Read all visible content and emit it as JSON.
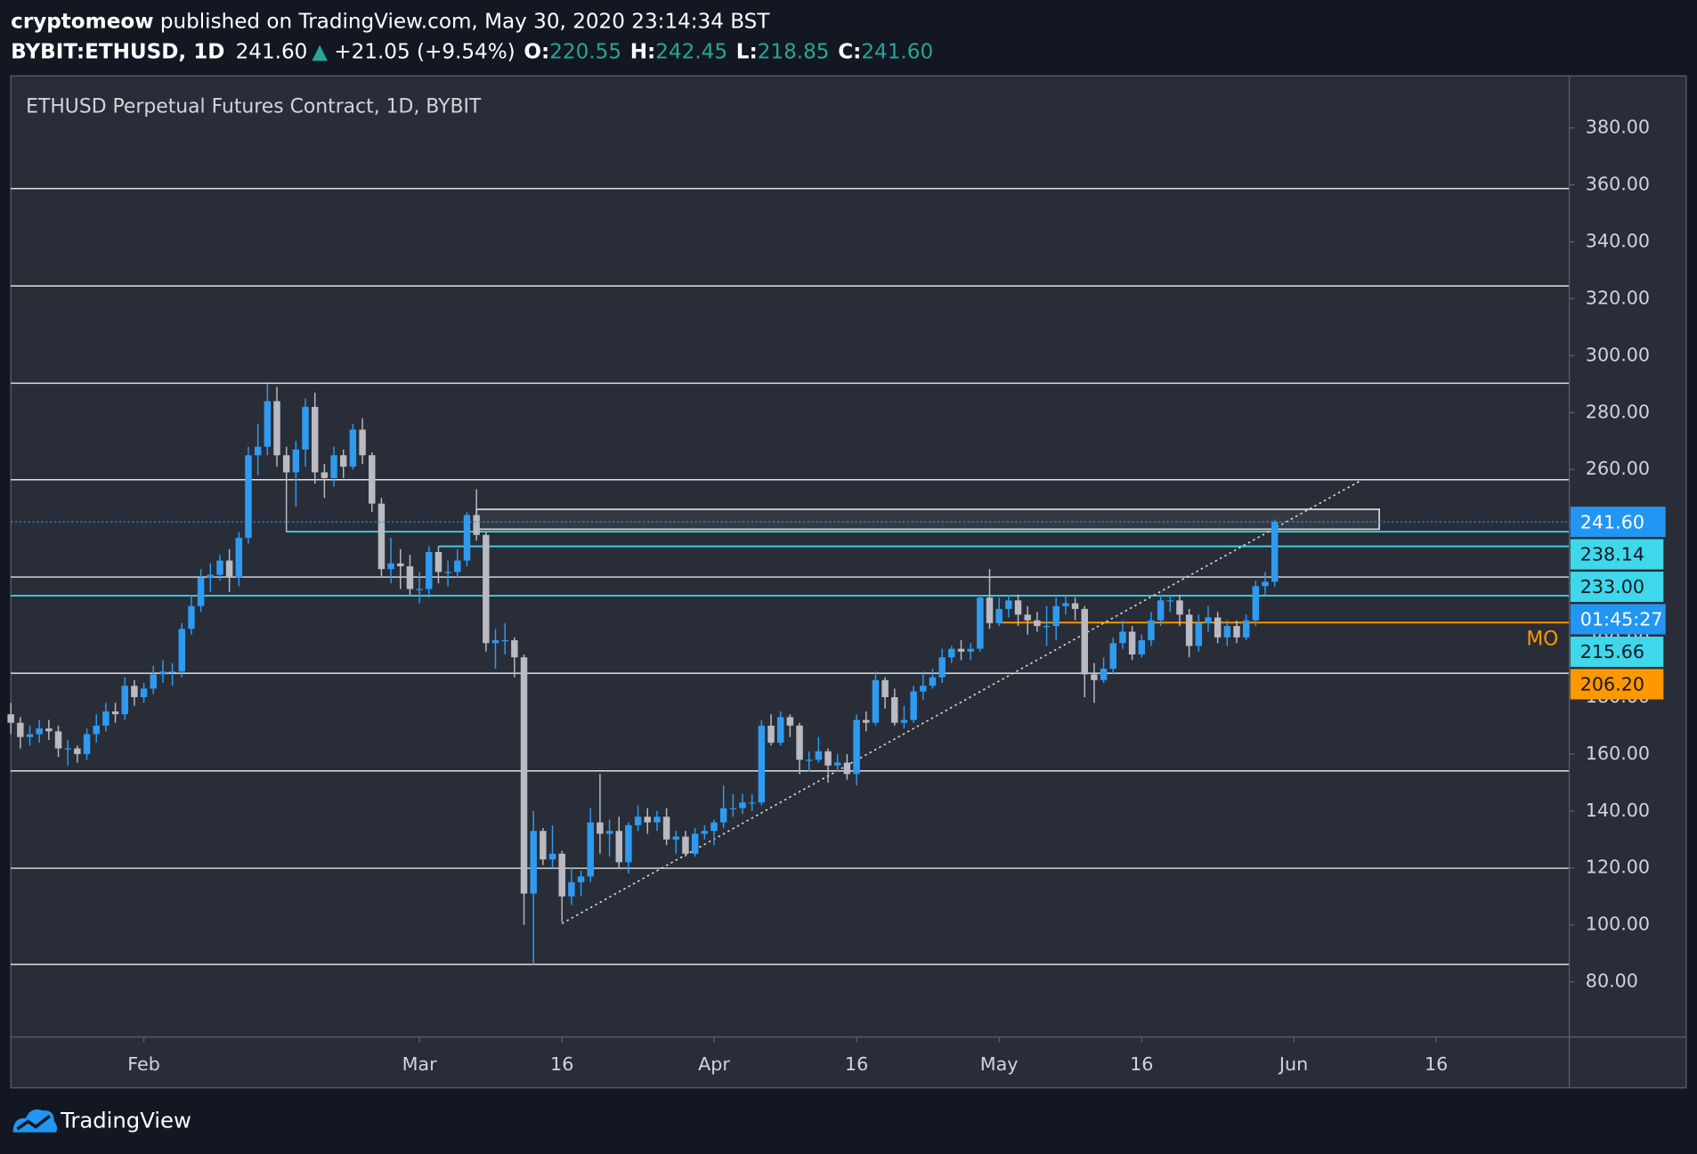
{
  "header": {
    "author": "cryptomeow",
    "published": "published on TradingView.com, May 30, 2020 23:14:34 BST",
    "symbol": "BYBIT:ETHUSD, 1D",
    "price": "241.60",
    "arrow": "▲",
    "change": "+21.05 (+9.54%)",
    "o_label": "O:",
    "o": "220.55",
    "h_label": "H:",
    "h": "242.45",
    "l_label": "L:",
    "l": "218.85",
    "c_label": "C:",
    "c": "241.60"
  },
  "footer": {
    "brand": "TradingView"
  },
  "chart_data": {
    "type": "candlestick",
    "title": "ETHUSD Perpetual Futures Contract, 1D, BYBIT",
    "up_color": "#2e9bf0",
    "down_color": "#b9bac2",
    "x": [
      "2020-01-18",
      "2020-01-19",
      "2020-01-20",
      "2020-01-21",
      "2020-01-22",
      "2020-01-23",
      "2020-01-24",
      "2020-01-25",
      "2020-01-26",
      "2020-01-27",
      "2020-01-28",
      "2020-01-29",
      "2020-01-30",
      "2020-01-31",
      "2020-02-01",
      "2020-02-02",
      "2020-02-03",
      "2020-02-04",
      "2020-02-05",
      "2020-02-06",
      "2020-02-07",
      "2020-02-08",
      "2020-02-09",
      "2020-02-10",
      "2020-02-11",
      "2020-02-12",
      "2020-02-13",
      "2020-02-14",
      "2020-02-15",
      "2020-02-16",
      "2020-02-17",
      "2020-02-18",
      "2020-02-19",
      "2020-02-20",
      "2020-02-21",
      "2020-02-22",
      "2020-02-23",
      "2020-02-24",
      "2020-02-25",
      "2020-02-26",
      "2020-02-27",
      "2020-02-28",
      "2020-02-29",
      "2020-03-01",
      "2020-03-02",
      "2020-03-03",
      "2020-03-04",
      "2020-03-05",
      "2020-03-06",
      "2020-03-07",
      "2020-03-08",
      "2020-03-09",
      "2020-03-10",
      "2020-03-11",
      "2020-03-12",
      "2020-03-13",
      "2020-03-14",
      "2020-03-15",
      "2020-03-16",
      "2020-03-17",
      "2020-03-18",
      "2020-03-19",
      "2020-03-20",
      "2020-03-21",
      "2020-03-22",
      "2020-03-23",
      "2020-03-24",
      "2020-03-25",
      "2020-03-26",
      "2020-03-27",
      "2020-03-28",
      "2020-03-29",
      "2020-03-30",
      "2020-03-31",
      "2020-04-01",
      "2020-04-02",
      "2020-04-03",
      "2020-04-04",
      "2020-04-05",
      "2020-04-06",
      "2020-04-07",
      "2020-04-08",
      "2020-04-09",
      "2020-04-10",
      "2020-04-11",
      "2020-04-12",
      "2020-04-13",
      "2020-04-14",
      "2020-04-15",
      "2020-04-16",
      "2020-04-17",
      "2020-04-18",
      "2020-04-19",
      "2020-04-20",
      "2020-04-21",
      "2020-04-22",
      "2020-04-23",
      "2020-04-24",
      "2020-04-25",
      "2020-04-26",
      "2020-04-27",
      "2020-04-28",
      "2020-04-29",
      "2020-04-30",
      "2020-05-01",
      "2020-05-02",
      "2020-05-03",
      "2020-05-04",
      "2020-05-05",
      "2020-05-06",
      "2020-05-07",
      "2020-05-08",
      "2020-05-09",
      "2020-05-10",
      "2020-05-11",
      "2020-05-12",
      "2020-05-13",
      "2020-05-14",
      "2020-05-15",
      "2020-05-16",
      "2020-05-17",
      "2020-05-18",
      "2020-05-19",
      "2020-05-20",
      "2020-05-21",
      "2020-05-22",
      "2020-05-23",
      "2020-05-24",
      "2020-05-25",
      "2020-05-26",
      "2020-05-27",
      "2020-05-28",
      "2020-05-29",
      "2020-05-30"
    ],
    "open": [
      174,
      171,
      166,
      167,
      169,
      168,
      162,
      162,
      160,
      167,
      170,
      175,
      174,
      184,
      180,
      183,
      188,
      189,
      189,
      204,
      212,
      222,
      223,
      228,
      222,
      236,
      265,
      268,
      284,
      265,
      259,
      267,
      282,
      259,
      257,
      265,
      261,
      274,
      265,
      248,
      225,
      227,
      226,
      218,
      218,
      231,
      224,
      224,
      228,
      244,
      237,
      199,
      200,
      200,
      194,
      111,
      133,
      123,
      125,
      110,
      115,
      117,
      136,
      132,
      133,
      122,
      135,
      138,
      136,
      138,
      130,
      131,
      125,
      132,
      133,
      136,
      141,
      141,
      143,
      143,
      170,
      164,
      173,
      170,
      158,
      158,
      161,
      156,
      157,
      153,
      172,
      171,
      186,
      180,
      171,
      172,
      182,
      184,
      187,
      194,
      197,
      196,
      197,
      215,
      206,
      211,
      214,
      209,
      207,
      205,
      205,
      212,
      213,
      211,
      188,
      186,
      190,
      199,
      203,
      195,
      200,
      207,
      214,
      214,
      209,
      198,
      206,
      208,
      201,
      205,
      201,
      207,
      219,
      220.55
    ],
    "high": [
      178,
      173,
      170,
      172,
      172,
      170,
      165,
      163,
      169,
      174,
      178,
      178,
      187,
      186,
      185,
      191,
      193,
      192,
      206,
      216,
      225,
      227,
      230,
      232,
      238,
      268,
      276,
      290,
      289,
      268,
      270,
      285,
      287,
      262,
      268,
      267,
      276,
      278,
      266,
      250,
      236,
      232,
      230,
      224,
      233,
      233,
      228,
      232,
      245,
      253,
      238,
      204,
      206,
      201,
      195,
      140,
      134,
      135,
      126,
      120,
      119,
      141,
      153,
      137,
      138,
      136,
      142,
      141,
      140,
      141,
      133,
      133,
      134,
      135,
      137,
      149,
      146,
      146,
      146,
      172,
      174,
      175,
      174,
      171,
      161,
      166,
      162,
      160,
      160,
      174,
      175,
      189,
      187,
      183,
      177,
      184,
      189,
      190,
      197,
      198,
      200,
      199,
      216,
      225,
      215,
      216,
      216,
      212,
      210,
      212,
      215,
      216,
      215,
      212,
      192,
      194,
      201,
      207,
      205,
      202,
      210,
      216,
      216,
      216,
      211,
      209,
      212,
      210,
      207,
      207,
      209,
      221,
      224,
      242.45
    ],
    "low": [
      167,
      162,
      163,
      164,
      165,
      159,
      156,
      157,
      158,
      164,
      168,
      171,
      172,
      177,
      178,
      181,
      185,
      184,
      187,
      202,
      210,
      217,
      221,
      217,
      219,
      234,
      258,
      265,
      261,
      238,
      247,
      261,
      255,
      250,
      254,
      257,
      260,
      262,
      245,
      222,
      220,
      218,
      216,
      213,
      215,
      220,
      219,
      222,
      226,
      235,
      196,
      190,
      195,
      187,
      100,
      86,
      121,
      120,
      101,
      107,
      110,
      115,
      125,
      124,
      120,
      118,
      133,
      132,
      133,
      128,
      125,
      124,
      124,
      130,
      128,
      134,
      138,
      139,
      140,
      142,
      163,
      163,
      166,
      153,
      154,
      157,
      150,
      154,
      151,
      149,
      168,
      170,
      176,
      170,
      169,
      171,
      179,
      183,
      185,
      192,
      193,
      193,
      196,
      204,
      205,
      208,
      205,
      202,
      203,
      198,
      200,
      209,
      207,
      180,
      178,
      185,
      188,
      197,
      193,
      194,
      198,
      205,
      210,
      205,
      194,
      196,
      203,
      199,
      198,
      199,
      200,
      205,
      216,
      218.85
    ],
    "close": [
      171,
      166,
      167,
      169,
      168,
      162,
      162,
      160,
      167,
      170,
      175,
      174,
      184,
      180,
      183,
      188,
      189,
      189,
      204,
      212,
      222,
      223,
      228,
      222,
      236,
      265,
      268,
      284,
      265,
      259,
      267,
      282,
      259,
      257,
      265,
      261,
      274,
      265,
      248,
      225,
      227,
      226,
      218,
      218,
      231,
      224,
      224,
      228,
      244,
      237,
      199,
      200,
      200,
      194,
      111,
      133,
      123,
      125,
      110,
      115,
      117,
      136,
      132,
      133,
      122,
      135,
      138,
      136,
      138,
      130,
      131,
      125,
      132,
      133,
      136,
      141,
      141,
      143,
      143,
      170,
      164,
      173,
      170,
      158,
      158,
      161,
      156,
      157,
      153,
      172,
      171,
      186,
      180,
      171,
      172,
      182,
      184,
      187,
      194,
      197,
      196,
      197,
      215,
      206,
      211,
      214,
      209,
      207,
      205,
      205,
      212,
      213,
      211,
      188,
      186,
      190,
      199,
      203,
      195,
      200,
      207,
      214,
      214,
      209,
      198,
      206,
      208,
      201,
      205,
      201,
      207,
      219,
      220.55,
      241.6
    ],
    "xlim": [
      "2020-01-18",
      "2020-06-30"
    ],
    "xticks": [
      {
        "value": "2020-02-01",
        "label": "Feb"
      },
      {
        "value": "2020-03-01",
        "label": "Mar"
      },
      {
        "value": "2020-03-16",
        "label": "16"
      },
      {
        "value": "2020-04-01",
        "label": "Apr"
      },
      {
        "value": "2020-04-16",
        "label": "16"
      },
      {
        "value": "2020-05-01",
        "label": "May"
      },
      {
        "value": "2020-05-16",
        "label": "16"
      },
      {
        "value": "2020-06-01",
        "label": "Jun"
      },
      {
        "value": "2020-06-16",
        "label": "16"
      }
    ],
    "ylim": [
      60.6,
      398.3
    ],
    "yticks": [
      {
        "value": 80,
        "label": "80.00"
      },
      {
        "value": 100,
        "label": "100.00"
      },
      {
        "value": 120,
        "label": "120.00"
      },
      {
        "value": 140,
        "label": "140.00"
      },
      {
        "value": 160,
        "label": "160.00"
      },
      {
        "value": 180,
        "label": "180.00"
      },
      {
        "value": 200,
        "label": "200.00"
      },
      {
        "value": 220,
        "label": "220.00"
      },
      {
        "value": 240,
        "label": "240.00"
      },
      {
        "value": 260,
        "label": "260.00"
      },
      {
        "value": 280,
        "label": "280.00"
      },
      {
        "value": 300,
        "label": "300.00"
      },
      {
        "value": 320,
        "label": "320.00"
      },
      {
        "value": 340,
        "label": "340.00"
      },
      {
        "value": 360,
        "label": "360.00"
      },
      {
        "value": 380,
        "label": "380.00"
      }
    ],
    "horizontal_lines": [
      358.7,
      324.5,
      290.3,
      256.4,
      222.2,
      188.4,
      154.1,
      119.9,
      86.1
    ],
    "rectangle": {
      "x": [
        "2020-03-07",
        "2020-06-10"
      ],
      "y": [
        239,
        246
      ]
    },
    "trend_line": {
      "x": [
        "2020-03-16",
        "2020-06-08"
      ],
      "y": [
        100.5,
        256
      ]
    },
    "last": {
      "value": 241.6,
      "label": "241.60",
      "countdown": "01:45:27",
      "color": "#2196f3"
    },
    "levels": [
      {
        "value": 238.14,
        "label": "238.14",
        "color": "#3fd7ea",
        "start": "2020-02-16"
      },
      {
        "value": 233,
        "label": "233.00",
        "color": "#3fd7ea",
        "start": "2020-03-03"
      },
      {
        "value": 215.66,
        "label": "215.66",
        "color": "#3fd7ea"
      },
      {
        "value": 206.2,
        "label": "206.20",
        "color": "#ff9800",
        "start": "2020-05-01",
        "name": "MO"
      }
    ]
  }
}
